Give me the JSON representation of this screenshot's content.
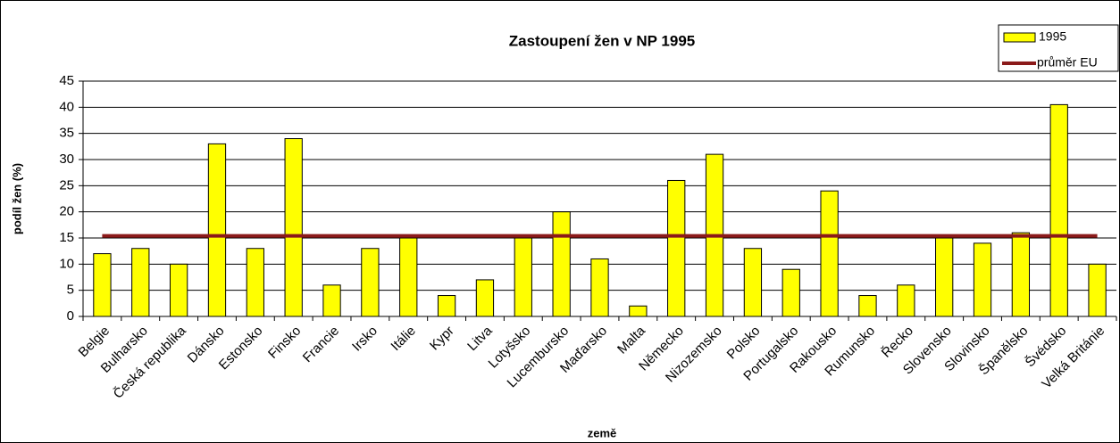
{
  "chart_data": {
    "type": "bar",
    "title": "Zastoupení žen v NP 1995",
    "x_label": "země",
    "y_label": "podíl žen (%)",
    "categories": [
      "Belgie",
      "Bulharsko",
      "Česká republika",
      "Dánsko",
      "Estonsko",
      "Finsko",
      "Francie",
      "Irsko",
      "Itálie",
      "Kypr",
      "Litva",
      "Lotyšsko",
      "Lucembursko",
      "Maďarsko",
      "Malta",
      "Německo",
      "Nizozemsko",
      "Polsko",
      "Portugalsko",
      "Rakousko",
      "Rumunsko",
      "Řecko",
      "Slovensko",
      "Slovinsko",
      "Španělsko",
      "Švédsko",
      "Velká Británie"
    ],
    "series": [
      {
        "name": "1995",
        "color": "#ffff00",
        "type": "bar",
        "values": [
          12,
          13,
          10,
          33,
          13,
          34,
          6,
          13,
          15,
          4,
          7,
          15,
          20,
          11,
          2,
          26,
          31,
          13,
          9,
          24,
          4,
          6,
          15,
          14,
          16,
          40.5,
          10
        ]
      },
      {
        "name": "průměr EU",
        "color": "#8b1a1a",
        "type": "line",
        "values": [
          15.4,
          15.4,
          15.4,
          15.4,
          15.4,
          15.4,
          15.4,
          15.4,
          15.4,
          15.4,
          15.4,
          15.4,
          15.4,
          15.4,
          15.4,
          15.4,
          15.4,
          15.4,
          15.4,
          15.4,
          15.4,
          15.4,
          15.4,
          15.4,
          15.4,
          15.4,
          15.4
        ]
      }
    ],
    "ylim": [
      0,
      45
    ],
    "yticks": [
      0,
      5,
      10,
      15,
      20,
      25,
      30,
      35,
      40,
      45
    ],
    "grid": true,
    "legend": "top-right"
  }
}
